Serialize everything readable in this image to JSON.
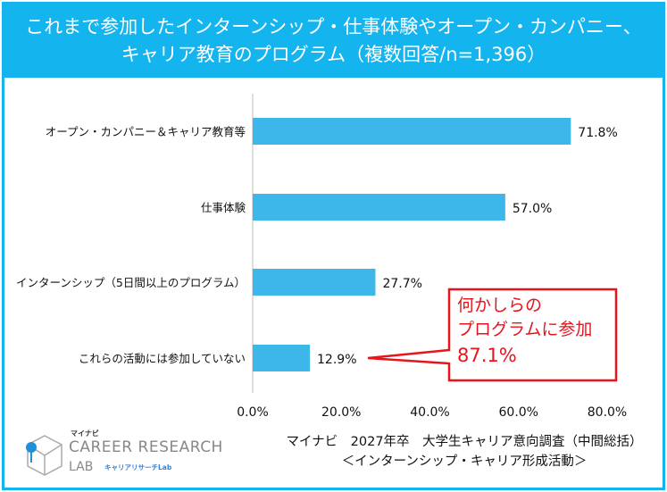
{
  "header": {
    "title_line1": "これまで参加したインターンシップ・仕事体験やオープン・カンパニー、",
    "title_line2": "キャリア教育のプログラム（複数回答/n=1,396）"
  },
  "chart_data": {
    "type": "bar",
    "orientation": "horizontal",
    "title": "これまで参加したインターンシップ・仕事体験やオープン・カンパニー、キャリア教育のプログラム（複数回答/n=1,396）",
    "categories": [
      "オープン・カンパニー＆キャリア教育等",
      "仕事体験",
      "インターンシップ（5日間以上のプログラム）",
      "これらの活動には参加していない"
    ],
    "values": [
      71.8,
      57.0,
      27.7,
      12.9
    ],
    "value_labels": [
      "71.8%",
      "57.0%",
      "27.7%",
      "12.9%"
    ],
    "xlim": [
      0,
      80
    ],
    "xticks": [
      "0.0%",
      "20.0%",
      "40.0%",
      "60.0%",
      "80.0%"
    ],
    "grid": false,
    "bar_color": "#3db6ea",
    "annotation": {
      "lines": [
        "何かしらの",
        "プログラムに参加",
        "87.1%"
      ],
      "color": "#e8131b"
    }
  },
  "source": {
    "line1": "マイナビ　2027年卒　大学生キャリア意向調査（中間総括）",
    "line2": "＜インターンシップ・キャリア形成活動＞"
  },
  "logo": {
    "brand": "マイナビ",
    "name": "CAREER RESEARCH",
    "lab": "LAB",
    "jp": "キャリアリサーチLab"
  }
}
